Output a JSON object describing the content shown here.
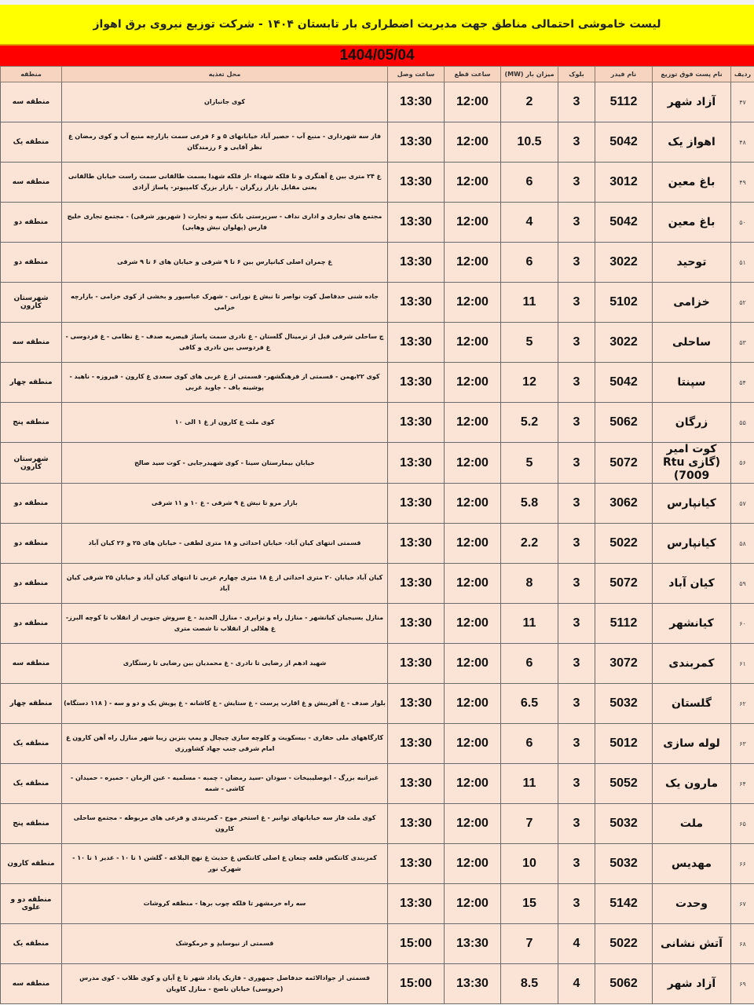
{
  "title": "لیست خاموشی احتمالی مناطق جهت مدیریت اضطراری بار تابستان ۱۴۰۴ - شرکت توزیع نیروی برق اهواز",
  "date": "1404/05/04",
  "headers": {
    "row": "ردیف",
    "substation": "نام پست فوق توزیع",
    "feeder": "نام فیدر",
    "block": "بلوک",
    "load": "میزان بار (MW)",
    "off": "ساعت قطع",
    "on": "ساعت وصل",
    "area": "محل تغذیه",
    "region": "منطقه"
  },
  "rows": [
    {
      "n": "۴۷",
      "sub": "آزاد شهر",
      "feeder": "5112",
      "block": "3",
      "load": "2",
      "off": "12:00",
      "on": "13:30",
      "area": "کوی جانبازان",
      "region": "منطقه سه"
    },
    {
      "n": "۴۸",
      "sub": "اهواز یک",
      "feeder": "5042",
      "block": "3",
      "load": "10.5",
      "off": "12:00",
      "on": "13:30",
      "area": "فاز سه شهرداری - منبع آب - حصیر آباد خیابانهای ۵ و ۶ فرعی سمت بازارچه منبع آب و کوی رمضان غ نظر آقایی و ۶ رزمندگان",
      "region": "منطقه یک"
    },
    {
      "n": "۴۹",
      "sub": "باغ معین",
      "feeder": "3012",
      "block": "3",
      "load": "6",
      "off": "12:00",
      "on": "13:30",
      "area": "غ ۲۴ متری بین غ آهنگری و تا فلکه شهداء -از فلکه شهدا بسمت طالقانی سمت راست خیابان طالقانی یعنی مقابل بازار زرگران - بازار بزرگ کامپیوتر- پاساژ آزادی",
      "region": "منطقه سه"
    },
    {
      "n": "۵۰",
      "sub": "باغ معین",
      "feeder": "5042",
      "block": "3",
      "load": "4",
      "off": "12:00",
      "on": "13:30",
      "area": "مجتمع های تجاری و اداری نداف - سرپرستی بانک سپه و تجارت ( شهریور شرقی) - مجتمع تجاری خلیج فارس (پهلوان نبش وهابی)",
      "region": "منطقه دو"
    },
    {
      "n": "۵۱",
      "sub": "توحید",
      "feeder": "3022",
      "block": "3",
      "load": "6",
      "off": "12:00",
      "on": "13:30",
      "area": "غ چمران اصلی کیانپارس بین ۶ تا ۹ شرقی و خیابان های ۶ تا ۹ شرقی",
      "region": "منطقه دو"
    },
    {
      "n": "۵۲",
      "sub": "خزامی",
      "feeder": "5102",
      "block": "3",
      "load": "11",
      "off": "12:00",
      "on": "13:30",
      "area": "جاده شنی حدفاصل کوت نواصر تا نبش غ نورانی - شهرک عباسپور و بخشی از کوی خزامی - بازارچه خزامی",
      "region": "شهرستان کارون"
    },
    {
      "n": "۵۳",
      "sub": "ساحلی",
      "feeder": "3022",
      "block": "3",
      "load": "5",
      "off": "12:00",
      "on": "13:30",
      "area": "چ ساحلی شرقی قبل از ترمینال گلستان - غ نادری سمت پاساژ قیصریه صدف - غ نظامی - غ فردوسی - غ فردوسی بین نادری و کافی",
      "region": "منطقه سه"
    },
    {
      "n": "۵۴",
      "sub": "سپنتا",
      "feeder": "5042",
      "block": "3",
      "load": "12",
      "off": "12:00",
      "on": "13:30",
      "area": "کوی ۲۲بهمن - قسمتی از فرهنگشهر- قسمتی از غ غربی های کوی سعدی غ کارون - فیروزه - ناهید - پوشینه باف - جاوید غربی",
      "region": "منطقه چهار"
    },
    {
      "n": "۵۵",
      "sub": "زرگان",
      "feeder": "5062",
      "block": "3",
      "load": "5.2",
      "off": "12:00",
      "on": "13:30",
      "area": "کوی ملت غ کارون از غ ۱ الی ۱۰",
      "region": "منطقه پنج"
    },
    {
      "n": "۵۶",
      "sub": "کوت امیر (گازی Rtu 7009)",
      "feeder": "5072",
      "block": "3",
      "load": "5",
      "off": "12:00",
      "on": "13:30",
      "area": "خیابان بیمارستان سینا - کوی شهیدرجایی - کوت سید صالح",
      "region": "شهرستان کارون"
    },
    {
      "n": "۵۷",
      "sub": "کیانپارس",
      "feeder": "3062",
      "block": "3",
      "load": "5.8",
      "off": "12:00",
      "on": "13:30",
      "area": "بازار مرو تا نبش غ ۹ شرقی - غ ۱۰ و ۱۱ شرقی",
      "region": "منطقه دو"
    },
    {
      "n": "۵۸",
      "sub": "کیانپارس",
      "feeder": "5022",
      "block": "3",
      "load": "2.2",
      "off": "12:00",
      "on": "13:30",
      "area": "قسمتی انتهای کیان آباد- خیابان احداثی و ۱۸ متری لطفی - خیابان های ۲۵ و ۲۶ کیان آباد",
      "region": "منطقه دو"
    },
    {
      "n": "۵۹",
      "sub": "کیان آباد",
      "feeder": "5072",
      "block": "3",
      "load": "8",
      "off": "12:00",
      "on": "13:30",
      "area": "کیان آباد خیابان ۲۰ متری احداثی از غ ۱۸ متری چهارم غربی تا انتهای کیان آباد و خیابان ۲۵ شرقی کیان آباد",
      "region": "منطقه دو"
    },
    {
      "n": "۶۰",
      "sub": "کیانشهر",
      "feeder": "5112",
      "block": "3",
      "load": "11",
      "off": "12:00",
      "on": "13:30",
      "area": "منازل بسیجیان کیانشهر - منازل راه و ترابری - منازل الحدید - غ سروش جنوبی از انقلاب تا کوچه البرز- غ هلالی از انقلاب تا شصت متری",
      "region": "منطقه دو"
    },
    {
      "n": "۶۱",
      "sub": "کمربندی",
      "feeder": "3072",
      "block": "3",
      "load": "6",
      "off": "12:00",
      "on": "13:30",
      "area": "شهید ادهم از رضایی تا نادری - غ محمدیان بین رضایی تا رستگاری",
      "region": "منطقه سه"
    },
    {
      "n": "۶۲",
      "sub": "گلستان",
      "feeder": "5032",
      "block": "3",
      "load": "6.5",
      "off": "12:00",
      "on": "13:30",
      "area": "بلوار صدف - غ آفرینش و غ اقارب پرست - غ ستایش - غ کاشانه - غ پویش یک و دو و سه - ( ۱۱۸ دستگاه)",
      "region": "منطقه چهار"
    },
    {
      "n": "۶۳",
      "sub": "لوله سازی",
      "feeder": "5012",
      "block": "3",
      "load": "6",
      "off": "12:00",
      "on": "13:30",
      "area": "کارگاههای ملی حفاری - بیسکویت و کلوچه سازی چیچال و پمپ بنزین زیبا شهر منازل راه آهن کارون غ امام شرقی جنب جهاد کشاورزی",
      "region": "منطقه یک"
    },
    {
      "n": "۶۴",
      "sub": "مارون یک",
      "feeder": "5052",
      "block": "3",
      "load": "11",
      "off": "12:00",
      "on": "13:30",
      "area": "غیزانیه بزرگ - ابوصلیبیخات - سودان -سید رمضان - چمبه - مسلمیه - عین الزمان - حمیره - حمیدان - کاشی - شمه",
      "region": "منطقه یک"
    },
    {
      "n": "۶۵",
      "sub": "ملت",
      "feeder": "5032",
      "block": "3",
      "load": "7",
      "off": "12:00",
      "on": "13:30",
      "area": "کوی ملت فاز سه خیابانهای توانیر - غ استخر موج - کمربندی و فرعی های مربوطه - مجتمع ساحلی کارون",
      "region": "منطقه پنج"
    },
    {
      "n": "۶۶",
      "sub": "مهدیس",
      "feeder": "5032",
      "block": "3",
      "load": "10",
      "off": "12:00",
      "on": "13:30",
      "area": "کمربندی کانتکس قلعه چنعان غ اصلی کانتکس غ حدیث غ نهج البلاغه - گلشن ۱ تا ۱۰ - غدیر ۱ تا ۱۰ - شهرک نور",
      "region": "منطقه کارون"
    },
    {
      "n": "۶۷",
      "sub": "وحدت",
      "feeder": "5142",
      "block": "3",
      "load": "15",
      "off": "12:00",
      "on": "13:30",
      "area": "سه راه خرمشهر تا فلکه چوب برها - منطقه کروشات",
      "region": "منطقه دو و علوی"
    },
    {
      "n": "۶۸",
      "sub": "آتش نشانی",
      "feeder": "5022",
      "block": "4",
      "load": "7",
      "off": "13:30",
      "on": "15:00",
      "area": "قسمتی از نیوسایدِ و خرمکوشک",
      "region": "منطقه یک"
    },
    {
      "n": "۶۹",
      "sub": "آزاد شهر",
      "feeder": "5062",
      "block": "4",
      "load": "8.5",
      "off": "13:30",
      "on": "15:00",
      "area": "قسمتی از جوادالائمه حدفاصل جمهوری - فازیک پاداد شهر تا غ آبان و کوی طلاب - کوی مدرس (خروسی) خیابان ناصح - منازل کاویان",
      "region": "منطقه سه"
    }
  ]
}
